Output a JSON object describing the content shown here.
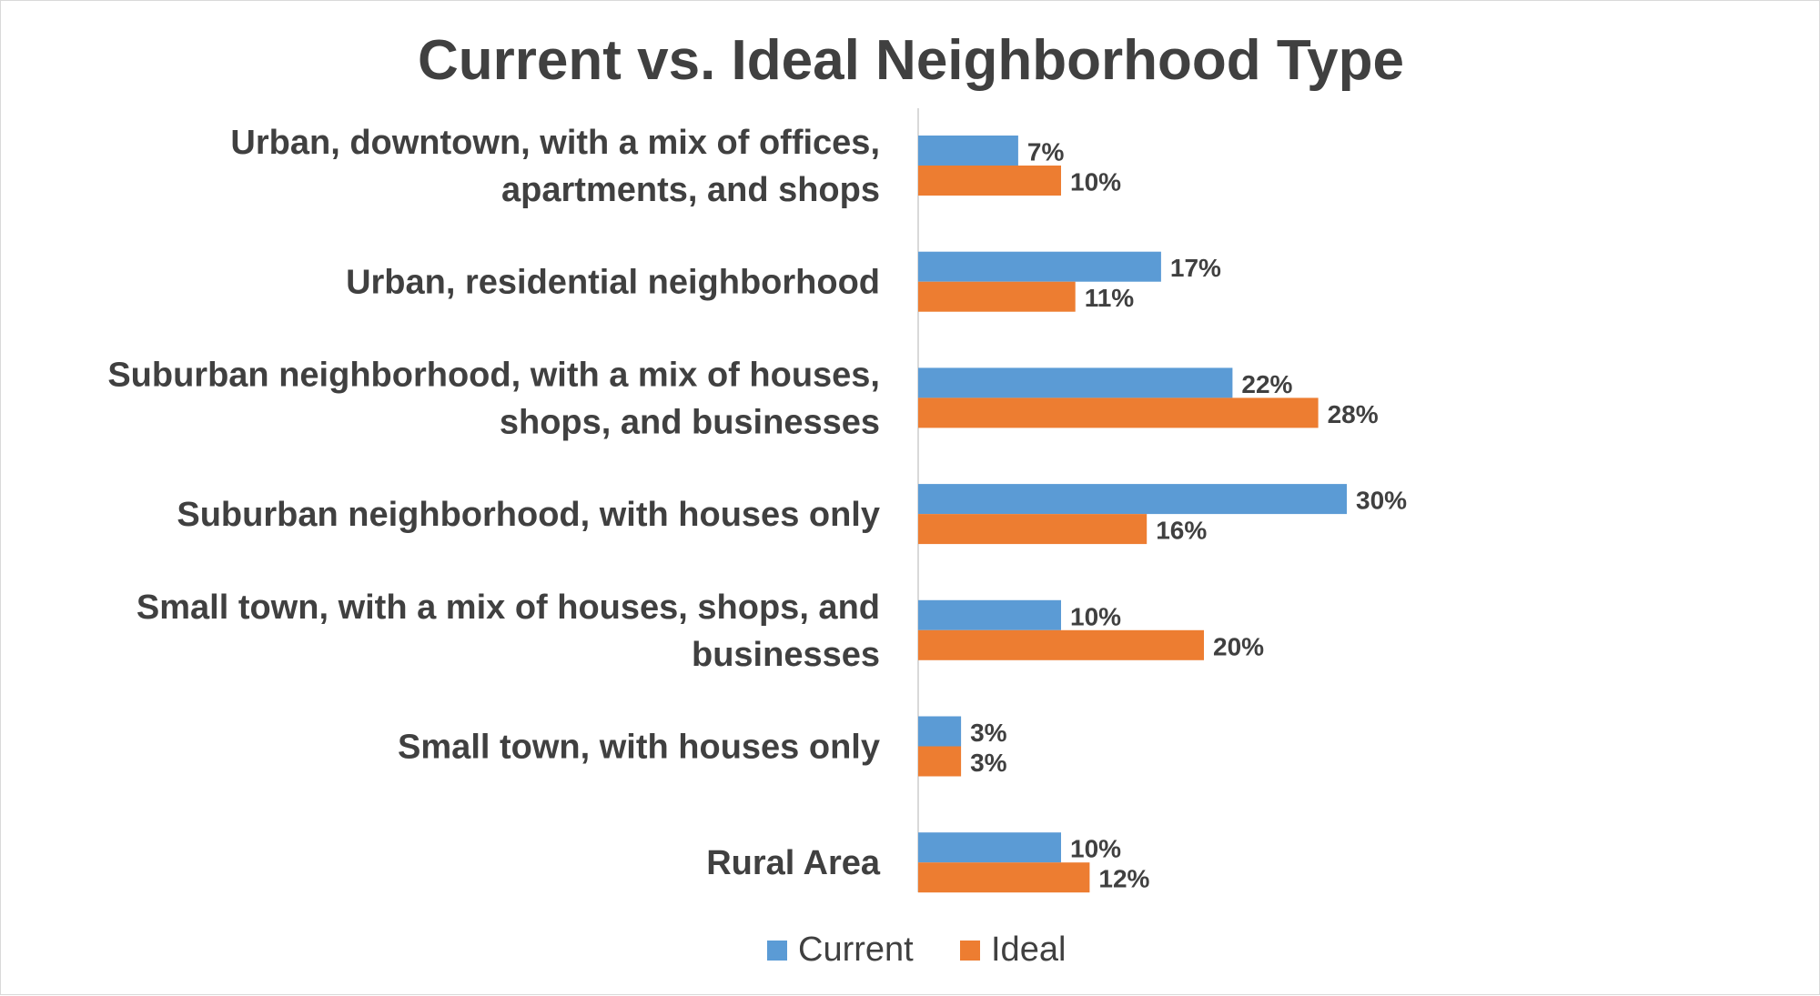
{
  "chart_data": {
    "type": "bar",
    "orientation": "horizontal",
    "title": "Current vs. Ideal Neighborhood Type",
    "categories": [
      [
        "Urban, downtown, with a mix of offices,",
        "apartments, and shops"
      ],
      [
        "Urban, residential neighborhood"
      ],
      [
        "Suburban neighborhood, with a mix of houses,",
        "shops, and businesses"
      ],
      [
        "Suburban neighborhood, with houses only"
      ],
      [
        "Small town, with a mix of houses, shops, and",
        "businesses"
      ],
      [
        "Small town, with houses only"
      ],
      [
        "Rural Area"
      ]
    ],
    "series": [
      {
        "name": "Current",
        "color": "#5b9bd5",
        "values": [
          7,
          17,
          22,
          30,
          10,
          3,
          10
        ],
        "labels": [
          "7%",
          "17%",
          "22%",
          "30%",
          "10%",
          "3%",
          "10%"
        ]
      },
      {
        "name": "Ideal",
        "color": "#ed7d31",
        "values": [
          10,
          11,
          28,
          16,
          20,
          3,
          12
        ],
        "labels": [
          "10%",
          "11%",
          "28%",
          "16%",
          "20%",
          "3%",
          "12%"
        ]
      }
    ],
    "value_unit": "%",
    "xlim": [
      0,
      33
    ],
    "legend_position": "bottom",
    "grid": false,
    "axis_color": "#d9d9d9",
    "text_color": "#404040"
  }
}
